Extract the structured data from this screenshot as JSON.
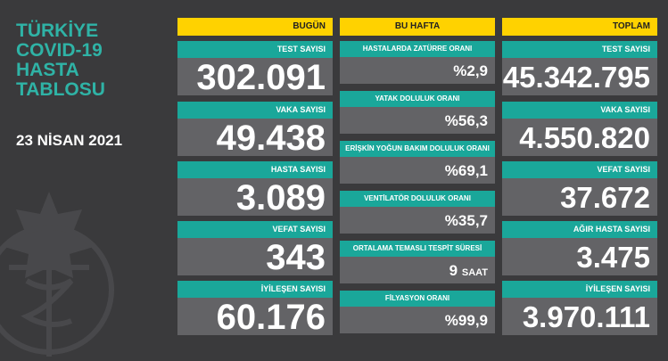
{
  "title": {
    "line1": "TÜRKİYE",
    "line2": "COVID-19",
    "line3": "HASTA",
    "line4": "TABLOSU"
  },
  "date": "23 NİSAN 2021",
  "colors": {
    "background": "#3a3a3c",
    "header": "#ffd200",
    "label": "#1aa79a",
    "value": "#636366",
    "title": "#2fb3a6"
  },
  "today": {
    "header": "BUGÜN",
    "items": [
      {
        "label": "TEST SAYISI",
        "value": "302.091"
      },
      {
        "label": "VAKA SAYISI",
        "value": "49.438"
      },
      {
        "label": "HASTA SAYISI",
        "value": "3.089"
      },
      {
        "label": "VEFAT SAYISI",
        "value": "343"
      },
      {
        "label": "İYİLEŞEN SAYISI",
        "value": "60.176"
      }
    ]
  },
  "week": {
    "header": "BU HAFTA",
    "items": [
      {
        "label": "HASTALARDA ZATÜRRE ORANI",
        "value": "%2,9",
        "unit": ""
      },
      {
        "label": "YATAK DOLULUK ORANI",
        "value": "%56,3",
        "unit": ""
      },
      {
        "label": "ERİŞKİN YOĞUN BAKIM DOLULUK ORANI",
        "value": "%69,1",
        "unit": ""
      },
      {
        "label": "VENTİLATÖR DOLULUK ORANI",
        "value": "%35,7",
        "unit": ""
      },
      {
        "label": "ORTALAMA TEMASLI TESPİT SÜRESİ",
        "value": "9",
        "unit": "SAAT"
      },
      {
        "label": "FİLYASYON ORANI",
        "value": "%99,9",
        "unit": ""
      }
    ]
  },
  "total": {
    "header": "TOPLAM",
    "items": [
      {
        "label": "TEST SAYISI",
        "value": "45.342.795"
      },
      {
        "label": "VAKA SAYISI",
        "value": "4.550.820"
      },
      {
        "label": "VEFAT SAYISI",
        "value": "37.672"
      },
      {
        "label": "AĞIR HASTA SAYISI",
        "value": "3.475"
      },
      {
        "label": "İYİLEŞEN SAYISI",
        "value": "3.970.111"
      }
    ]
  }
}
